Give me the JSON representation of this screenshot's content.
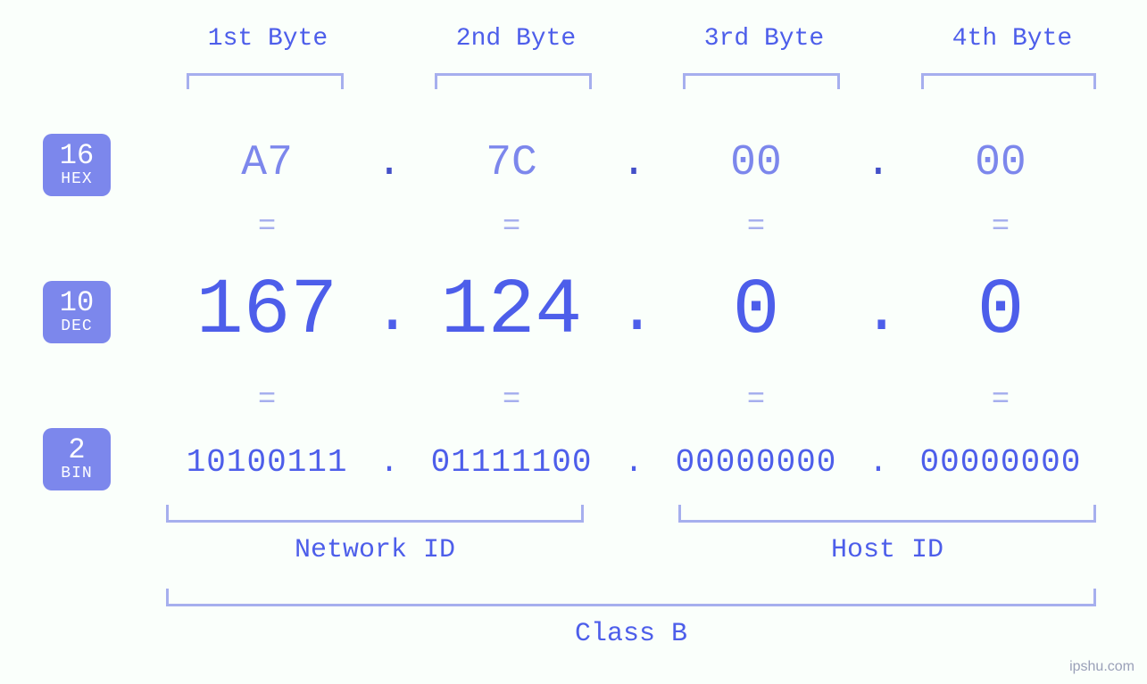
{
  "type": "infographic",
  "background_color": "#fafffb",
  "colors": {
    "primary": "#4d5eea",
    "secondary": "#7c87ec",
    "light": "#a6afee",
    "badge_bg": "#7c87ec",
    "badge_text": "#ffffff"
  },
  "typography": {
    "font_family": "monospace",
    "byte_label_fontsize": 28,
    "hex_fontsize": 48,
    "dec_fontsize": 88,
    "bin_fontsize": 36,
    "equals_fontsize": 34,
    "bottom_label_fontsize": 30,
    "badge_num_fontsize": 32,
    "badge_txt_fontsize": 18
  },
  "byte_headers": [
    "1st Byte",
    "2nd Byte",
    "3rd Byte",
    "4th Byte"
  ],
  "badges": {
    "hex": {
      "num": "16",
      "txt": "HEX"
    },
    "dec": {
      "num": "10",
      "txt": "DEC"
    },
    "bin": {
      "num": "2",
      "txt": "BIN"
    }
  },
  "separator": ".",
  "equals": "=",
  "bytes": {
    "hex": [
      "A7",
      "7C",
      "00",
      "00"
    ],
    "dec": [
      "167",
      "124",
      "0",
      "0"
    ],
    "bin": [
      "10100111",
      "01111100",
      "00000000",
      "00000000"
    ]
  },
  "groups": {
    "network": {
      "label": "Network ID",
      "span_bytes": [
        1,
        2
      ]
    },
    "host": {
      "label": "Host ID",
      "span_bytes": [
        3,
        4
      ]
    },
    "class": {
      "label": "Class B",
      "span_bytes": [
        1,
        4
      ]
    }
  },
  "watermark": "ipshu.com"
}
